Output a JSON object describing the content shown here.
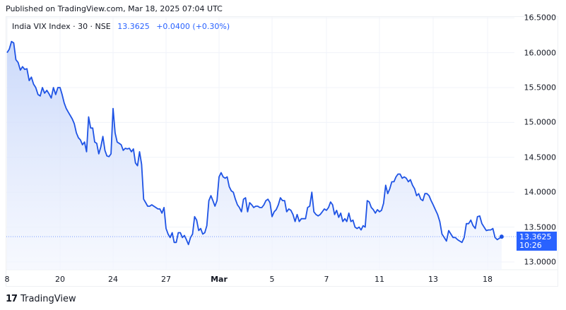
{
  "header": {
    "published": "Published on TradingView.com, Mar 18, 2025 07:04 UTC"
  },
  "legend": {
    "symbol": "India VIX Index · 30 · NSE",
    "last_price": "13.3625",
    "change": "+0.0400 (+0.30%)"
  },
  "price_badge": {
    "price": "13.3625",
    "countdown": "10:26",
    "color": "#2962ff"
  },
  "footer": {
    "logo_mark": "17",
    "brand": "TradingView"
  },
  "colors": {
    "line": "#1e53e5",
    "area_top": "#c9d8fb",
    "area_bottom": "#f4f7fe",
    "grid": "#f0f3fa",
    "accent": "#2962ff"
  },
  "chart_data": {
    "type": "area",
    "title": "India VIX Index · 30 · NSE",
    "xlabel": "",
    "ylabel": "",
    "ylim": [
      12.9,
      16.55
    ],
    "grid": true,
    "legend_position": "top-left",
    "y_ticks": [
      "16.5000",
      "16.0000",
      "15.5000",
      "15.0000",
      "14.5000",
      "14.0000",
      "13.5000",
      "13.0000"
    ],
    "x_ticks": [
      {
        "label": "8",
        "bold": false
      },
      {
        "label": "20",
        "bold": false
      },
      {
        "label": "24",
        "bold": false
      },
      {
        "label": "27",
        "bold": false
      },
      {
        "label": "Mar",
        "bold": true
      },
      {
        "label": "5",
        "bold": false
      },
      {
        "label": "7",
        "bold": false
      },
      {
        "label": "11",
        "bold": false
      },
      {
        "label": "13",
        "bold": false
      },
      {
        "label": "18",
        "bold": false
      }
    ],
    "last_value": 13.3625,
    "series": [
      {
        "name": "India VIX (30m)",
        "points_by_session": [
          {
            "session": "Feb 18",
            "values": [
              16.0,
              16.05,
              16.16,
              16.14,
              15.9,
              15.86,
              15.75,
              15.8,
              15.76,
              15.77,
              15.6,
              15.65,
              15.55,
              15.5,
              15.4,
              15.38,
              15.5,
              15.42,
              15.46,
              15.41,
              15.35,
              15.5,
              15.4,
              15.5
            ]
          },
          {
            "session": "Feb 20",
            "values": [
              15.5,
              15.4,
              15.28,
              15.2,
              15.15,
              15.1,
              15.05,
              14.98,
              14.85,
              14.78,
              14.75,
              14.68,
              14.72,
              14.58,
              15.08,
              14.92,
              14.92,
              14.72,
              14.7,
              14.55,
              14.65,
              14.8,
              14.6,
              14.52,
              14.51,
              14.55
            ]
          },
          {
            "session": "Feb 24",
            "values": [
              15.2,
              14.85,
              14.72,
              14.7,
              14.68,
              14.6,
              14.63,
              14.62,
              14.63,
              14.58,
              14.62,
              14.42,
              14.38,
              14.58,
              14.4,
              13.9,
              13.85,
              13.8,
              13.8,
              13.82,
              13.8,
              13.78,
              13.76,
              13.76,
              13.7,
              13.78
            ]
          },
          {
            "session": "Feb 27",
            "values": [
              13.48,
              13.4,
              13.35,
              13.42,
              13.28,
              13.28,
              13.42,
              13.42,
              13.35,
              13.38,
              13.32,
              13.25,
              13.35,
              13.4,
              13.65,
              13.6,
              13.45,
              13.48,
              13.4,
              13.42,
              13.52,
              13.88,
              13.95,
              13.88,
              13.8,
              13.88
            ]
          },
          {
            "session": "Mar 3",
            "values": [
              14.22,
              14.28,
              14.22,
              14.2,
              14.22,
              14.08,
              14.02,
              14.0,
              13.9,
              13.82,
              13.78,
              13.72,
              13.9,
              13.92,
              13.72,
              13.85,
              13.82,
              13.78,
              13.8,
              13.8,
              13.78,
              13.78,
              13.82,
              13.88,
              13.9,
              13.85
            ]
          },
          {
            "session": "Mar 5",
            "values": [
              13.65,
              13.72,
              13.75,
              13.82,
              13.92,
              13.88,
              13.88,
              13.72,
              13.76,
              13.74,
              13.68,
              13.58,
              13.68,
              13.58,
              13.62,
              13.62,
              13.62,
              13.78,
              13.8,
              14.0,
              13.72,
              13.68,
              13.66,
              13.68,
              13.72,
              13.76
            ]
          },
          {
            "session": "Mar 7",
            "values": [
              13.74,
              13.78,
              13.86,
              13.82,
              13.68,
              13.74,
              13.64,
              13.7,
              13.58,
              13.62,
              13.58,
              13.7,
              13.58,
              13.6,
              13.5,
              13.48,
              13.5,
              13.46,
              13.52,
              13.5,
              13.88,
              13.86,
              13.78,
              13.75,
              13.7,
              13.75
            ]
          },
          {
            "session": "Mar 11",
            "values": [
              13.72,
              13.74,
              13.84,
              14.1,
              13.98,
              14.05,
              14.15,
              14.15,
              14.22,
              14.26,
              14.26,
              14.2,
              14.22,
              14.2,
              14.15,
              14.18,
              14.1,
              14.05,
              13.95,
              13.98,
              13.9,
              13.88,
              13.98,
              13.98,
              13.95,
              13.88
            ]
          },
          {
            "session": "Mar 13",
            "values": [
              13.82,
              13.75,
              13.68,
              13.58,
              13.4,
              13.35,
              13.3,
              13.45,
              13.4,
              13.35,
              13.35,
              13.32,
              13.3,
              13.28,
              13.35,
              13.55,
              13.55,
              13.6,
              13.52,
              13.48,
              13.65,
              13.66
            ]
          },
          {
            "session": "Mar 17-18",
            "values": [
              13.55,
              13.5,
              13.45,
              13.46,
              13.46,
              13.48,
              13.35,
              13.32,
              13.34,
              13.3625
            ]
          }
        ]
      }
    ]
  }
}
